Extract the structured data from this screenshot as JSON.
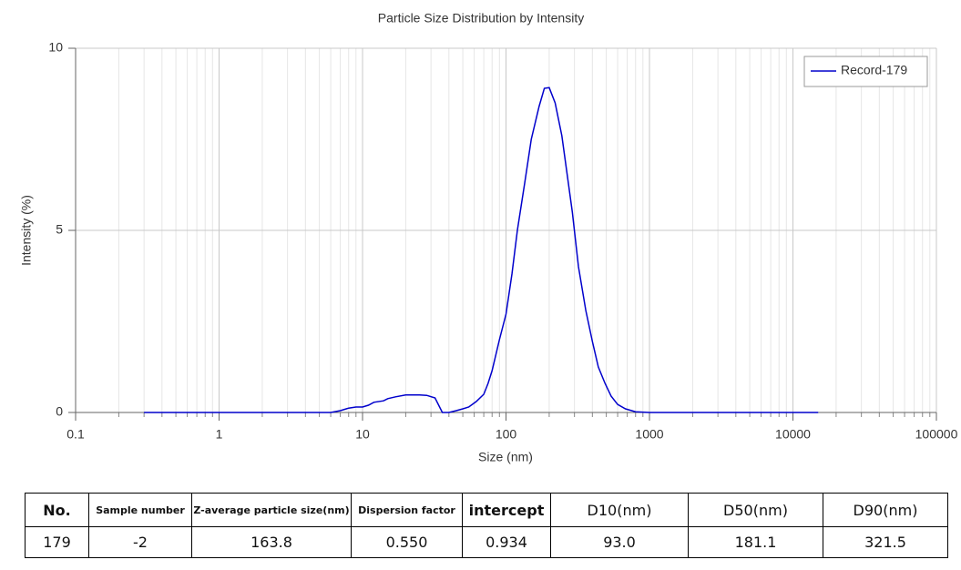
{
  "chart_data": {
    "type": "line",
    "title": "Particle Size Distribution by Intensity",
    "xlabel": "Size (nm)",
    "ylabel": "Intensity (%)",
    "xscale": "log",
    "grid": true,
    "legend": "upper right",
    "xlim": [
      0.1,
      100000
    ],
    "xticks": [
      0.1,
      1,
      10,
      100,
      1000,
      10000,
      100000
    ],
    "ylim": [
      0,
      10
    ],
    "yticks": [
      0,
      5,
      10
    ],
    "x": [
      0.3,
      1,
      3,
      6,
      7,
      8,
      9,
      10,
      11,
      12,
      14,
      15,
      17,
      20,
      25,
      28,
      32,
      36,
      40,
      45,
      50,
      55,
      62,
      70,
      75,
      80,
      90,
      100,
      110,
      120,
      135,
      150,
      170,
      185,
      200,
      220,
      245,
      290,
      320,
      360,
      400,
      440,
      490,
      540,
      600,
      680,
      800,
      1000,
      15000
    ],
    "series": [
      {
        "name": "Record-179",
        "color": "#0000cc",
        "values": [
          0,
          0,
          0,
          0,
          0.05,
          0.12,
          0.15,
          0.15,
          0.2,
          0.28,
          0.32,
          0.38,
          0.43,
          0.48,
          0.48,
          0.47,
          0.4,
          0,
          0,
          0.05,
          0.1,
          0.15,
          0.3,
          0.5,
          0.8,
          1.15,
          2,
          2.7,
          3.8,
          5,
          6.3,
          7.5,
          8.4,
          8.9,
          8.92,
          8.5,
          7.6,
          5.5,
          4,
          2.8,
          1.95,
          1.25,
          0.8,
          0.45,
          0.22,
          0.1,
          0.02,
          0,
          0
        ]
      }
    ]
  },
  "table": {
    "header": [
      "No.",
      "Sample number",
      "Z-average particle size(nm)",
      "Dispersion factor",
      "intercept",
      "D10(nm)",
      "D50(nm)",
      "D90(nm)"
    ],
    "rows": [
      [
        "179",
        "-2",
        "163.8",
        "0.550",
        "0.934",
        "93.0",
        "181.1",
        "321.5"
      ]
    ]
  }
}
